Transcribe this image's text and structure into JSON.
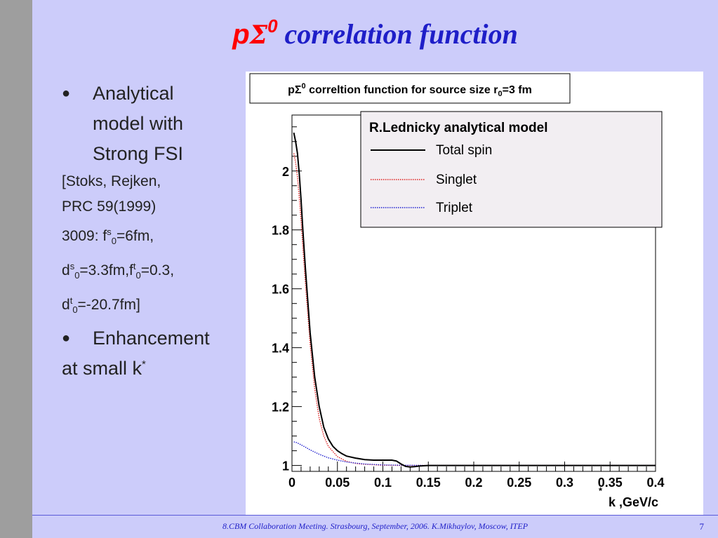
{
  "slide": {
    "title_p": "p",
    "title_sigma": "Σ",
    "title_sup": "0",
    "title_rest": "correlation function",
    "bullet1_line1": "Analytical",
    "bullet1_line2": "model with",
    "bullet1_line3": "Strong FSI",
    "note_line1": "[Stoks, Rejken,",
    "note_line2": "PRC 59(1999)",
    "note_l3_pre": "3009: f",
    "note_l3_sup": "s",
    "note_l3_sub": "0",
    "note_l3_post": "=6fm,",
    "note_l4_pre": "d",
    "note_l4_sup": "s",
    "note_l4_sub": "0",
    "note_l4_mid": "=3.3fm,f",
    "note_l4_sup2": "t",
    "note_l4_sub2": "0",
    "note_l4_post": "=0.3,",
    "note_l5_pre": "d",
    "note_l5_sup": "t",
    "note_l5_sub": "0",
    "note_l5_post": "=-20.7fm]",
    "bullet2_text": "Enhancement",
    "k_text": "at small k",
    "k_sup": "*",
    "footer": "8.CBM Collaboration Meeting. Strasbourg, September, 2006. K.Mikhaylov, Moscow, ITEP",
    "page_number": "7"
  },
  "chart_data": {
    "type": "line",
    "title_pre": "pΣ",
    "title_sup": "0",
    "title_mid": " correltion function for source size r",
    "title_sub": "0",
    "title_post": "=3 fm",
    "xlabel_star": "*",
    "xlabel": "k ,GeV/c",
    "xlim": [
      0,
      0.4
    ],
    "ylim": [
      0.98,
      2.19
    ],
    "x_ticks": [
      "0",
      "0.05",
      "0.1",
      "0.15",
      "0.2",
      "0.25",
      "0.3",
      "0.35",
      "0.4"
    ],
    "y_ticks": [
      "1",
      "1.2",
      "1.4",
      "1.6",
      "1.8",
      "2"
    ],
    "legend_title": "R.Lednicky analytical model",
    "legend_position": "top-right",
    "series": [
      {
        "name": "Total spin",
        "color": "#000000",
        "style": "solid",
        "x": [
          0.002,
          0.004,
          0.006,
          0.008,
          0.01,
          0.012,
          0.015,
          0.02,
          0.025,
          0.03,
          0.035,
          0.04,
          0.045,
          0.05,
          0.055,
          0.06,
          0.07,
          0.08,
          0.09,
          0.1,
          0.11,
          0.115,
          0.12,
          0.125,
          0.13,
          0.135,
          0.14,
          0.15,
          0.16,
          0.2,
          0.3,
          0.4
        ],
        "y": [
          2.13,
          2.1,
          2.06,
          1.99,
          1.9,
          1.8,
          1.66,
          1.45,
          1.3,
          1.2,
          1.13,
          1.09,
          1.065,
          1.05,
          1.04,
          1.032,
          1.025,
          1.02,
          1.018,
          1.018,
          1.018,
          1.015,
          1.005,
          0.997,
          0.995,
          0.996,
          0.998,
          1.0,
          1.0,
          1.0,
          1.0,
          1.0
        ]
      },
      {
        "name": "Singlet",
        "color": "#e02020",
        "style": "dotted",
        "x": [
          0.002,
          0.004,
          0.006,
          0.008,
          0.01,
          0.012,
          0.015,
          0.02,
          0.025,
          0.03,
          0.035,
          0.04,
          0.05,
          0.06,
          0.07,
          0.08,
          0.1,
          0.12,
          0.15,
          0.2,
          0.3,
          0.4
        ],
        "y": [
          2.06,
          2.03,
          1.98,
          1.91,
          1.83,
          1.74,
          1.61,
          1.41,
          1.26,
          1.16,
          1.1,
          1.065,
          1.03,
          1.014,
          1.007,
          1.004,
          1.001,
          1.0,
          1.0,
          1.0,
          1.0,
          1.0
        ]
      },
      {
        "name": "Triplet",
        "color": "#2020d0",
        "style": "dotted",
        "x": [
          0.002,
          0.005,
          0.01,
          0.015,
          0.02,
          0.03,
          0.04,
          0.05,
          0.06,
          0.07,
          0.08,
          0.1,
          0.12,
          0.15,
          0.2,
          0.3,
          0.4
        ],
        "y": [
          1.08,
          1.078,
          1.07,
          1.062,
          1.053,
          1.038,
          1.026,
          1.018,
          1.012,
          1.008,
          1.005,
          1.002,
          1.001,
          1.0,
          1.0,
          1.0,
          1.0
        ]
      }
    ]
  }
}
